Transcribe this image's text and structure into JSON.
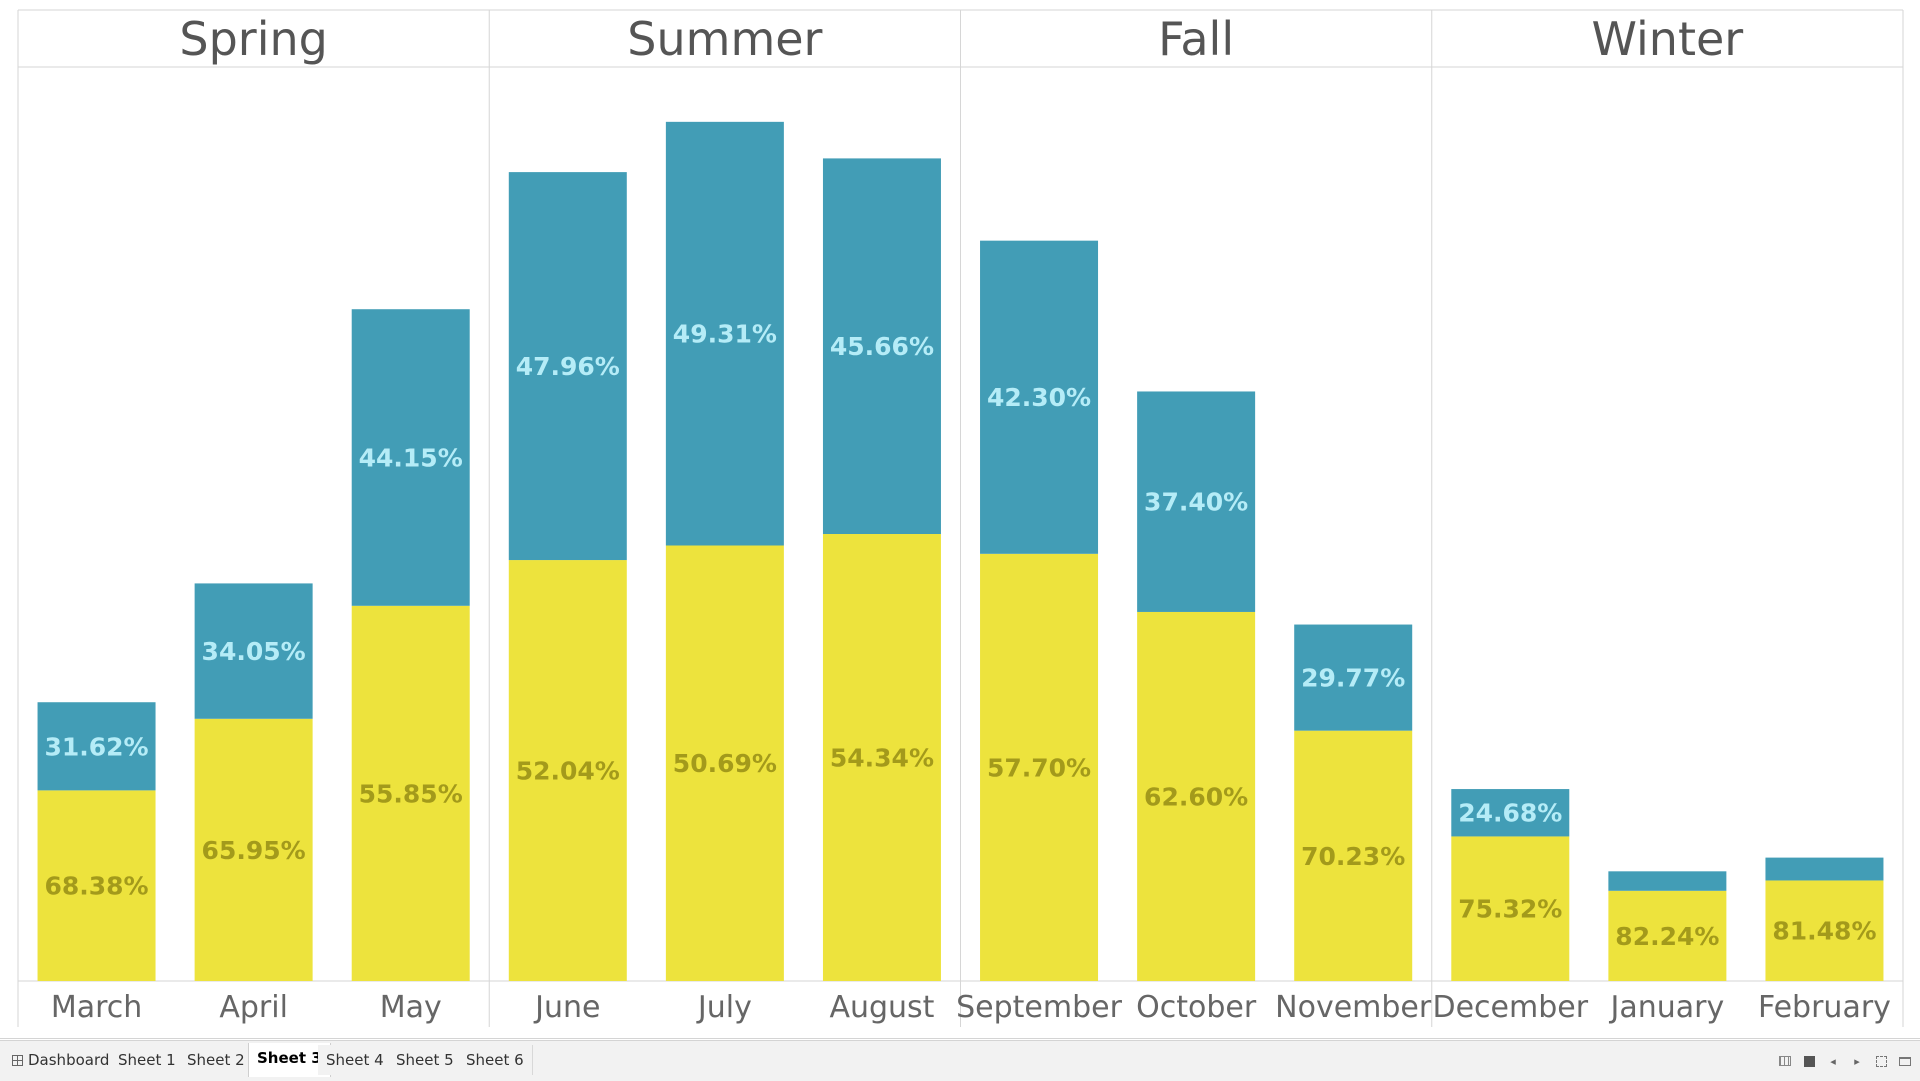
{
  "window": {
    "tabs": [
      {
        "label": "Dashboard",
        "icon": "dashboard-icon",
        "active": false
      },
      {
        "label": "Sheet 1",
        "active": false
      },
      {
        "label": "Sheet 2",
        "active": false
      },
      {
        "label": "Sheet 3",
        "active": true
      },
      {
        "label": "Sheet 4",
        "active": false
      },
      {
        "label": "Sheet 5",
        "active": false
      },
      {
        "label": "Sheet 6",
        "active": false
      }
    ],
    "nav_controls": [
      {
        "icon": "grid-view-icon"
      },
      {
        "icon": "square-view-icon"
      },
      {
        "icon": "previous-sheet-icon",
        "glyph": "◂"
      },
      {
        "icon": "next-sheet-icon",
        "glyph": "▸"
      },
      {
        "icon": "fullscreen-icon"
      },
      {
        "icon": "presentation-mode-icon"
      }
    ]
  },
  "colors": {
    "top_segment": "#429db6",
    "bottom_segment": "#ede33d",
    "top_label": "#b5ecf7",
    "bottom_label": "#a39a1b",
    "divider": "#d6d6d6"
  },
  "chart_data": {
    "type": "bar",
    "stacked": true,
    "grid": false,
    "legend": "none",
    "panels": [
      {
        "name": "Spring",
        "months": [
          "March",
          "April",
          "May"
        ]
      },
      {
        "name": "Summer",
        "months": [
          "June",
          "July",
          "August"
        ]
      },
      {
        "name": "Fall",
        "months": [
          "September",
          "October",
          "November"
        ]
      },
      {
        "name": "Winter",
        "months": [
          "December",
          "January",
          "February"
        ]
      }
    ],
    "categories": [
      "March",
      "April",
      "May",
      "June",
      "July",
      "August",
      "September",
      "October",
      "November",
      "December",
      "January",
      "February"
    ],
    "bar_totals": [
      30.5,
      43.5,
      73.5,
      88.5,
      94.0,
      90.0,
      81.0,
      64.5,
      39.0,
      21.0,
      12.0,
      13.5
    ],
    "y_max": 100,
    "series": [
      {
        "segment": "top",
        "labels": [
          "31.62%",
          "34.05%",
          "44.15%",
          "47.96%",
          "49.31%",
          "45.66%",
          "42.30%",
          "37.40%",
          "29.77%",
          "24.68%",
          "",
          ""
        ],
        "shares": [
          31.62,
          34.05,
          44.15,
          47.96,
          49.31,
          45.66,
          42.3,
          37.4,
          29.77,
          24.68,
          17.76,
          18.52
        ]
      },
      {
        "segment": "bottom",
        "labels": [
          "68.38%",
          "65.95%",
          "55.85%",
          "52.04%",
          "50.69%",
          "54.34%",
          "57.70%",
          "62.60%",
          "70.23%",
          "75.32%",
          "82.24%",
          "81.48%"
        ],
        "shares": [
          68.38,
          65.95,
          55.85,
          52.04,
          50.69,
          54.34,
          57.7,
          62.6,
          70.23,
          75.32,
          82.24,
          81.48
        ]
      }
    ]
  }
}
